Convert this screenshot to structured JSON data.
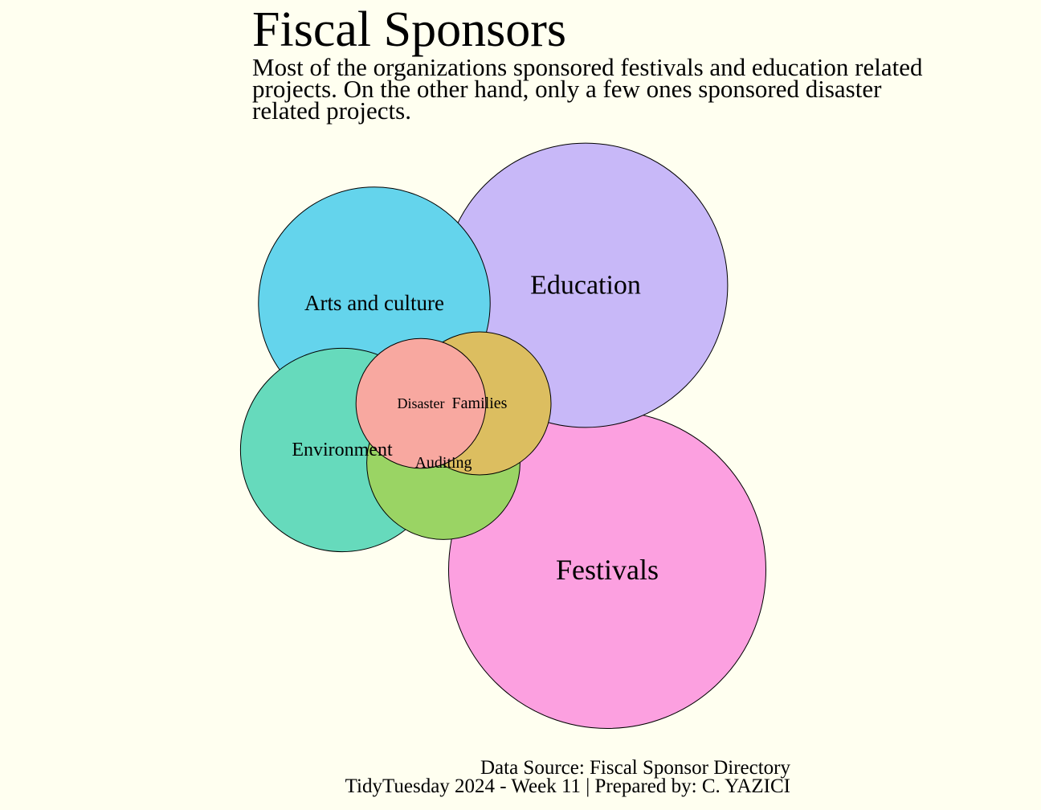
{
  "chart_data": {
    "type": "bubble",
    "title": "Fiscal Sponsors",
    "subtitle": "Most of the organizations sponsored festivals and education related projects. On the other hand, only a few ones sponsored disaster related projects.",
    "caption_lines": [
      "Data Source: Fiscal Sponsor Directory",
      "TidyTuesday 2024 - Week 11 | Prepared by: C. YAZICI"
    ],
    "categories": [
      "Festivals",
      "Education",
      "Arts and culture",
      "Environment",
      "Auditing",
      "Families",
      "Disaster"
    ],
    "values": [
      197,
      158,
      105,
      81,
      46,
      40,
      33
    ],
    "colors": {
      "Festivals": "#FCA0E0",
      "Education": "#C8B8F8",
      "Arts and culture": "#64D4EC",
      "Environment": "#66DABC",
      "Auditing": "#9AD464",
      "Families": "#DCBE60",
      "Disaster": "#F8A8A0"
    },
    "stroke_color": "#000000",
    "background": "#FFFFF0"
  }
}
